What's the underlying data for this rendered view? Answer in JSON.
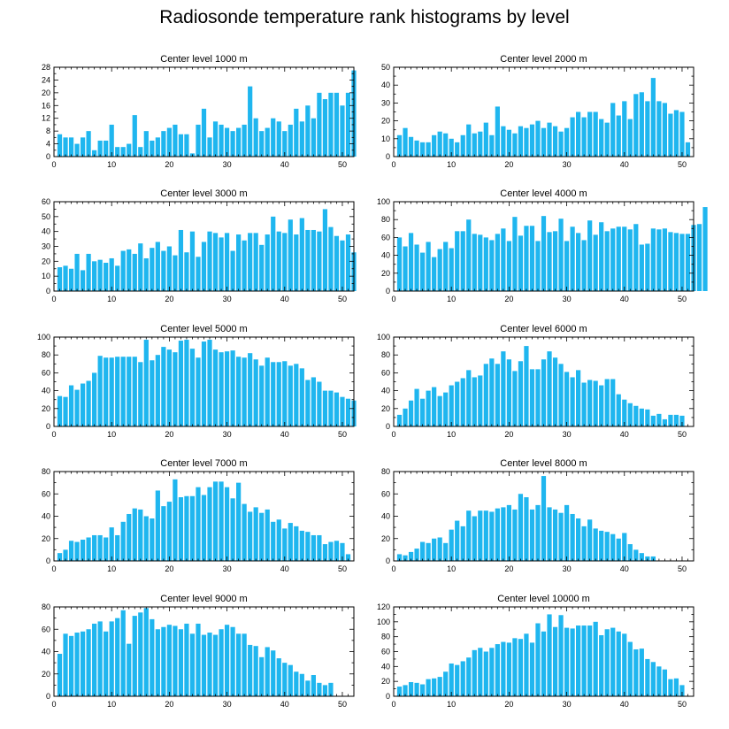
{
  "title": "Radiosonde temperature rank histograms by level",
  "colors": {
    "bar": "#1fb6ef",
    "axis": "#000000",
    "background": "#ffffff"
  },
  "chart_data": [
    {
      "type": "bar",
      "title": "Center level 1000 m",
      "xlim": [
        0,
        52
      ],
      "ylim": [
        0,
        28
      ],
      "xticks": [
        0,
        10,
        20,
        30,
        40,
        50
      ],
      "yticks": [
        0,
        4,
        8,
        12,
        16,
        20,
        24,
        28
      ],
      "values": [
        7,
        6,
        6,
        4,
        6,
        8,
        2,
        5,
        5,
        10,
        3,
        3,
        4,
        13,
        3,
        8,
        5,
        6,
        8,
        9,
        10,
        7,
        7,
        1,
        10,
        15,
        6,
        11,
        10,
        9,
        8,
        9,
        10,
        22,
        12,
        8,
        9,
        12,
        11,
        8,
        10,
        15,
        11,
        16,
        12,
        20,
        18,
        20,
        20,
        16,
        20,
        27
      ]
    },
    {
      "type": "bar",
      "title": "Center level 2000 m",
      "xlim": [
        0,
        52
      ],
      "ylim": [
        0,
        50
      ],
      "xticks": [
        0,
        10,
        20,
        30,
        40,
        50
      ],
      "yticks": [
        0,
        10,
        20,
        30,
        40,
        50
      ],
      "values": [
        12,
        16,
        11,
        9,
        8,
        8,
        12,
        14,
        13,
        10,
        8,
        12,
        18,
        13,
        14,
        19,
        12,
        28,
        17,
        15,
        13,
        17,
        16,
        18,
        20,
        16,
        19,
        17,
        14,
        16,
        22,
        25,
        22,
        25,
        25,
        21,
        19,
        30,
        23,
        31,
        21,
        35,
        36,
        31,
        44,
        31,
        30,
        24,
        26,
        25,
        8
      ]
    },
    {
      "type": "bar",
      "title": "Center level 3000 m",
      "xlim": [
        0,
        52
      ],
      "ylim": [
        0,
        60
      ],
      "xticks": [
        0,
        10,
        20,
        30,
        40,
        50
      ],
      "yticks": [
        0,
        10,
        20,
        30,
        40,
        50,
        60
      ],
      "values": [
        16,
        17,
        15,
        25,
        14,
        25,
        20,
        21,
        19,
        22,
        17,
        27,
        28,
        25,
        32,
        22,
        29,
        33,
        27,
        30,
        24,
        41,
        26,
        40,
        23,
        33,
        40,
        39,
        36,
        39,
        27,
        38,
        34,
        39,
        39,
        31,
        38,
        50,
        40,
        39,
        48,
        38,
        49,
        41,
        41,
        40,
        55,
        43,
        37,
        34,
        38,
        26
      ]
    },
    {
      "type": "bar",
      "title": "Center level 4000 m",
      "xlim": [
        0,
        52
      ],
      "ylim": [
        0,
        100
      ],
      "xticks": [
        0,
        10,
        20,
        30,
        40,
        50
      ],
      "yticks": [
        0,
        20,
        40,
        60,
        80,
        100
      ],
      "values": [
        60,
        50,
        65,
        52,
        43,
        55,
        38,
        47,
        55,
        48,
        67,
        67,
        80,
        64,
        63,
        60,
        57,
        64,
        70,
        56,
        83,
        62,
        73,
        73,
        56,
        84,
        66,
        67,
        81,
        56,
        72,
        65,
        57,
        79,
        63,
        77,
        67,
        70,
        72,
        72,
        69,
        75,
        52,
        53,
        70,
        69,
        70,
        66,
        65,
        64,
        64,
        74,
        75,
        94
      ]
    },
    {
      "type": "bar",
      "title": "Center level 5000 m",
      "xlim": [
        0,
        52
      ],
      "ylim": [
        0,
        100
      ],
      "xticks": [
        0,
        10,
        20,
        30,
        40,
        50
      ],
      "yticks": [
        0,
        20,
        40,
        60,
        80,
        100
      ],
      "values": [
        34,
        33,
        46,
        41,
        48,
        51,
        60,
        79,
        77,
        77,
        78,
        78,
        78,
        78,
        72,
        97,
        74,
        80,
        89,
        86,
        83,
        96,
        97,
        87,
        77,
        95,
        97,
        86,
        83,
        84,
        85,
        78,
        77,
        82,
        75,
        68,
        77,
        72,
        72,
        73,
        68,
        70,
        65,
        52,
        55,
        50,
        40,
        40,
        38,
        33,
        31,
        29
      ]
    },
    {
      "type": "bar",
      "title": "Center level 6000 m",
      "xlim": [
        0,
        52
      ],
      "ylim": [
        0,
        100
      ],
      "xticks": [
        0,
        10,
        20,
        30,
        40,
        50
      ],
      "yticks": [
        0,
        20,
        40,
        60,
        80,
        100
      ],
      "values": [
        13,
        20,
        29,
        42,
        31,
        40,
        44,
        34,
        38,
        46,
        50,
        54,
        63,
        55,
        57,
        70,
        76,
        70,
        84,
        75,
        62,
        73,
        90,
        64,
        64,
        75,
        84,
        77,
        70,
        61,
        55,
        63,
        49,
        52,
        51,
        46,
        53,
        53,
        36,
        30,
        26,
        23,
        20,
        19,
        12,
        14,
        8,
        13,
        13,
        12
      ]
    },
    {
      "type": "bar",
      "title": "Center level 7000 m",
      "xlim": [
        0,
        52
      ],
      "ylim": [
        0,
        80
      ],
      "xticks": [
        0,
        10,
        20,
        30,
        40,
        50
      ],
      "yticks": [
        0,
        20,
        40,
        60,
        80
      ],
      "values": [
        7,
        10,
        18,
        17,
        19,
        21,
        23,
        23,
        21,
        30,
        23,
        35,
        42,
        47,
        46,
        40,
        38,
        63,
        49,
        53,
        73,
        57,
        58,
        58,
        66,
        59,
        66,
        71,
        71,
        66,
        56,
        70,
        51,
        44,
        48,
        43,
        46,
        35,
        37,
        29,
        34,
        31,
        27,
        26,
        23,
        23,
        15,
        17,
        18,
        16,
        6
      ]
    },
    {
      "type": "bar",
      "title": "Center level 8000 m",
      "xlim": [
        0,
        52
      ],
      "ylim": [
        0,
        80
      ],
      "xticks": [
        0,
        10,
        20,
        30,
        40,
        50
      ],
      "yticks": [
        0,
        20,
        40,
        60,
        80
      ],
      "values": [
        6,
        5,
        8,
        11,
        17,
        16,
        20,
        21,
        16,
        28,
        36,
        31,
        45,
        40,
        45,
        45,
        44,
        47,
        48,
        50,
        46,
        60,
        57,
        46,
        50,
        76,
        48,
        46,
        43,
        50,
        42,
        38,
        31,
        37,
        29,
        27,
        26,
        24,
        20,
        25,
        15,
        10,
        7,
        4,
        4
      ]
    },
    {
      "type": "bar",
      "title": "Center level 9000 m",
      "xlim": [
        0,
        52
      ],
      "ylim": [
        0,
        80
      ],
      "xticks": [
        0,
        10,
        20,
        30,
        40,
        50
      ],
      "yticks": [
        0,
        20,
        40,
        60,
        80
      ],
      "values": [
        38,
        56,
        54,
        57,
        58,
        60,
        65,
        67,
        58,
        67,
        70,
        77,
        47,
        72,
        75,
        79,
        69,
        60,
        62,
        64,
        63,
        60,
        65,
        56,
        65,
        55,
        57,
        55,
        60,
        64,
        62,
        56,
        56,
        46,
        45,
        35,
        44,
        41,
        34,
        30,
        28,
        22,
        20,
        14,
        19,
        12,
        10,
        12
      ]
    },
    {
      "type": "bar",
      "title": "Center level 10000 m",
      "xlim": [
        0,
        52
      ],
      "ylim": [
        0,
        120
      ],
      "xticks": [
        0,
        10,
        20,
        30,
        40,
        50
      ],
      "yticks": [
        0,
        20,
        40,
        60,
        80,
        100,
        120
      ],
      "values": [
        13,
        15,
        19,
        18,
        16,
        23,
        24,
        26,
        33,
        44,
        42,
        47,
        52,
        62,
        65,
        60,
        65,
        70,
        73,
        72,
        78,
        77,
        84,
        72,
        98,
        87,
        110,
        93,
        109,
        92,
        91,
        95,
        95,
        95,
        100,
        82,
        90,
        92,
        87,
        84,
        73,
        63,
        64,
        50,
        46,
        40,
        36,
        23,
        24,
        15
      ]
    }
  ]
}
